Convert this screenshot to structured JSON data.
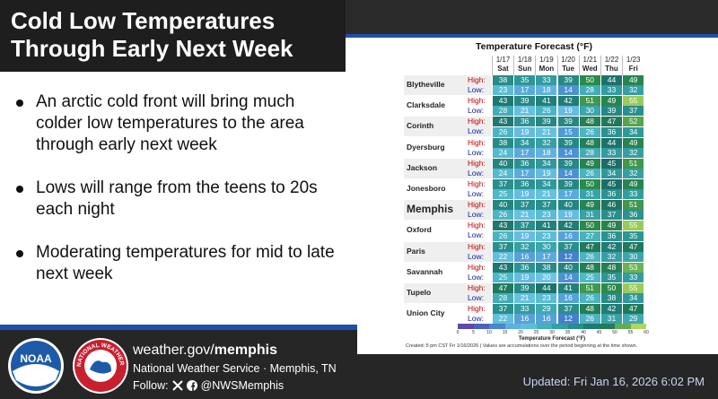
{
  "header": {
    "title": "Cold Low Temperatures Through Early Next Week"
  },
  "bullets": [
    "An arctic cold front will bring much colder low temperatures to the area through early next week",
    "Lows will range from the teens to 20s each night",
    "Moderating temperatures for mid to late next week"
  ],
  "forecast": {
    "title": "Temperature Forecast (°F)",
    "dates": [
      "1/17",
      "1/18",
      "1/19",
      "1/20",
      "1/21",
      "1/22",
      "1/23"
    ],
    "days": [
      "Sat",
      "Sun",
      "Mon",
      "Tue",
      "Wed",
      "Thu",
      "Fri"
    ],
    "high_label": "High:",
    "low_label": "Low:",
    "rows": [
      {
        "city": "Blytheville",
        "high": [
          38,
          35,
          33,
          39,
          50,
          44,
          49
        ],
        "low": [
          23,
          17,
          18,
          14,
          28,
          33,
          32
        ]
      },
      {
        "city": "Clarksdale",
        "high": [
          43,
          39,
          41,
          42,
          51,
          49,
          55
        ],
        "low": [
          28,
          21,
          26,
          19,
          30,
          39,
          37
        ]
      },
      {
        "city": "Corinth",
        "high": [
          43,
          36,
          39,
          39,
          48,
          47,
          52
        ],
        "low": [
          26,
          19,
          21,
          15,
          26,
          36,
          34
        ]
      },
      {
        "city": "Dyersburg",
        "high": [
          38,
          34,
          32,
          39,
          48,
          44,
          49
        ],
        "low": [
          24,
          17,
          18,
          14,
          28,
          33,
          32
        ]
      },
      {
        "city": "Jackson",
        "high": [
          40,
          36,
          34,
          39,
          49,
          45,
          51
        ],
        "low": [
          24,
          17,
          19,
          14,
          26,
          34,
          32
        ]
      },
      {
        "city": "Jonesboro",
        "high": [
          37,
          36,
          34,
          39,
          50,
          45,
          49
        ],
        "low": [
          25,
          19,
          21,
          17,
          31,
          36,
          33
        ]
      },
      {
        "city": "Memphis",
        "high": [
          40,
          37,
          37,
          40,
          49,
          46,
          51
        ],
        "low": [
          26,
          21,
          23,
          19,
          31,
          37,
          36
        ]
      },
      {
        "city": "Oxford",
        "high": [
          43,
          37,
          41,
          42,
          50,
          49,
          55
        ],
        "low": [
          26,
          19,
          23,
          16,
          27,
          36,
          35
        ]
      },
      {
        "city": "Paris",
        "high": [
          37,
          32,
          30,
          37,
          47,
          42,
          47
        ],
        "low": [
          22,
          16,
          17,
          12,
          26,
          32,
          30
        ]
      },
      {
        "city": "Savannah",
        "high": [
          43,
          36,
          38,
          40,
          48,
          48,
          53
        ],
        "low": [
          25,
          19,
          20,
          14,
          25,
          35,
          33
        ]
      },
      {
        "city": "Tupelo",
        "high": [
          47,
          39,
          44,
          41,
          51,
          50,
          55
        ],
        "low": [
          28,
          21,
          23,
          16,
          26,
          38,
          34
        ]
      },
      {
        "city": "Union City",
        "high": [
          37,
          33,
          29,
          37,
          48,
          42,
          47
        ],
        "low": [
          22,
          16,
          16,
          12,
          26,
          31,
          29
        ]
      }
    ],
    "legend": {
      "ticks": [
        0,
        5,
        10,
        15,
        20,
        25,
        30,
        35,
        40,
        45,
        50,
        55,
        60
      ],
      "title": "Temperature Forecast (°F)"
    },
    "note": "Created: 5 pm CST Fri 1/16/2026 | Values are accumulations over the period beginning at the time shown."
  },
  "footer": {
    "logo_noaa": "NOAA",
    "logo_nws": "NATIONAL WEATHER SERVICE",
    "url_prefix": "weather.gov/",
    "url_bold": "memphis",
    "office": "National Weather Service · Memphis, TN",
    "follow": "Follow:",
    "handle": "@NWSMemphis",
    "updated": "Updated: Fri Jan 16, 2026 6:02 PM"
  }
}
